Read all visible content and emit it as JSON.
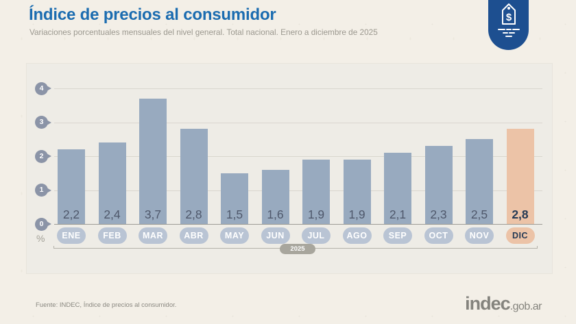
{
  "page": {
    "title": "Índice de precios al consumidor",
    "subtitle": "Variaciones porcentuales mensuales del nivel general. Total nacional. Enero a diciembre de 2025",
    "source": "Fuente: INDEC, Índice de precios al consumidor.",
    "logo": {
      "main": "indec",
      "suffix": ".gob.ar"
    },
    "badge_icon": "price-tag-icon",
    "badge_color": "#1d4f90",
    "title_color": "#1b6cb0"
  },
  "chart_data": {
    "type": "bar",
    "title": "Índice de precios al consumidor",
    "subtitle": "Variaciones porcentuales mensuales del nivel general. Total nacional. Enero a diciembre de 2025",
    "categories": [
      "ENE",
      "FEB",
      "MAR",
      "ABR",
      "MAY",
      "JUN",
      "JUL",
      "AGO",
      "SEP",
      "OCT",
      "NOV",
      "DIC"
    ],
    "values": [
      2.2,
      2.4,
      3.7,
      2.8,
      1.5,
      1.6,
      1.9,
      1.9,
      2.1,
      2.3,
      2.5,
      2.8
    ],
    "value_labels": [
      "2,2",
      "2,4",
      "3,7",
      "2,8",
      "1,5",
      "1,6",
      "1,9",
      "1,9",
      "2,1",
      "2,3",
      "2,5",
      "2,8"
    ],
    "highlight_index": 11,
    "ylabel": "%",
    "xlabel": "",
    "x_axis_group_label": "2025",
    "ylim": [
      0,
      4
    ],
    "yticks": [
      0,
      1,
      2,
      3,
      4
    ],
    "grid": true,
    "legend": false,
    "colors": {
      "bar": "#98aabf",
      "bar_highlight": "#ecc3a7",
      "value_text": "#4f586b",
      "value_text_highlight": "#253a55",
      "month_pill": "#b9c4d4",
      "month_pill_text": "#ffffff",
      "tick_pin": "#8b94a7",
      "gridline": "#d9d6ce",
      "baseline": "#9d9c96",
      "axis_line": "#b3b1a9",
      "year_pill": "#a8a69d"
    }
  }
}
